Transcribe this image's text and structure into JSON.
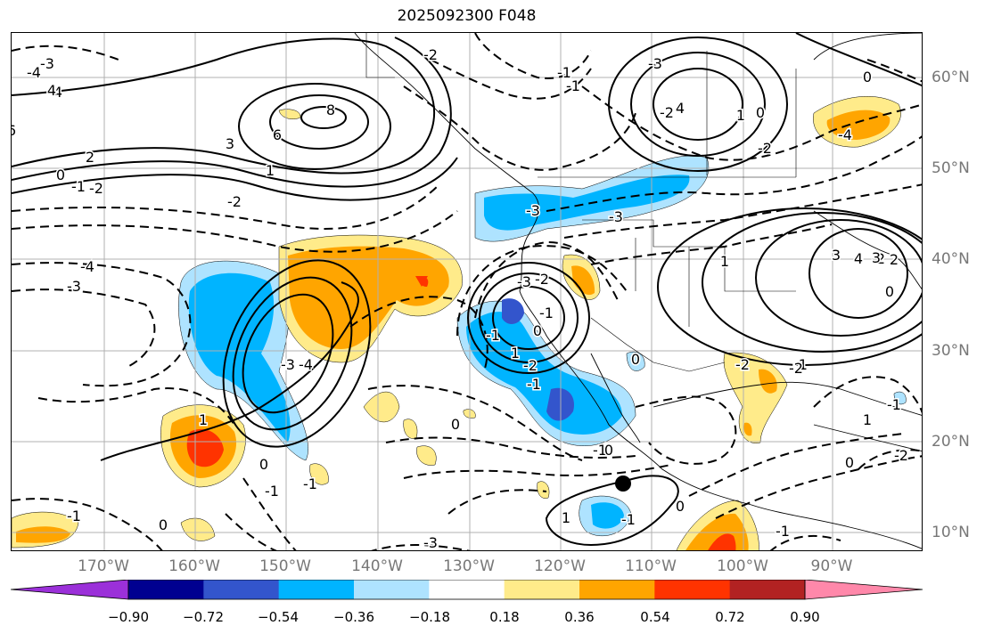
{
  "title": "2025092300 F048",
  "lat_labels": [
    "60°N",
    "50°N",
    "40°N",
    "30°N",
    "20°N",
    "10°N"
  ],
  "lon_labels": [
    "170°W",
    "160°W",
    "150°W",
    "140°W",
    "130°W",
    "120°W",
    "110°W",
    "100°W",
    "90°W"
  ],
  "colorbar": {
    "tick_labels": [
      "−0.90",
      "−0.72",
      "−0.54",
      "−0.36",
      "−0.18",
      "0.18",
      "0.36",
      "0.54",
      "0.72",
      "0.90"
    ],
    "colors": [
      "#9b30d9",
      "#000090",
      "#3355cc",
      "#00b4ff",
      "#aee3ff",
      "#ffffff",
      "#ffeb8a",
      "#ffa500",
      "#ff3300",
      "#b22222",
      "#ff88aa"
    ]
  },
  "contour_labels": [
    "8",
    "6",
    "6",
    "4",
    "3",
    "2",
    "1",
    "0",
    "-1",
    "-2",
    "-2",
    "-3",
    "-4",
    "4",
    "-3",
    "-4",
    "-3",
    "-2",
    "-1",
    "0",
    "-1",
    "1",
    "-3",
    "-3",
    "-3",
    "-2",
    "-1",
    "0",
    "1",
    "-2",
    "4",
    "-4",
    "2",
    "3",
    "-1",
    "-2",
    "-3",
    "-4",
    "1",
    "4",
    "3",
    "2",
    "0",
    "0",
    "-2",
    "-1",
    "-2",
    "0",
    "1",
    "-1",
    "0",
    "-2",
    "0",
    "1",
    "-1",
    "0",
    "-1",
    "-2",
    "-1",
    "0",
    "1",
    "-1",
    "0",
    "-1",
    "-3",
    "-1",
    "0",
    "-1"
  ]
}
